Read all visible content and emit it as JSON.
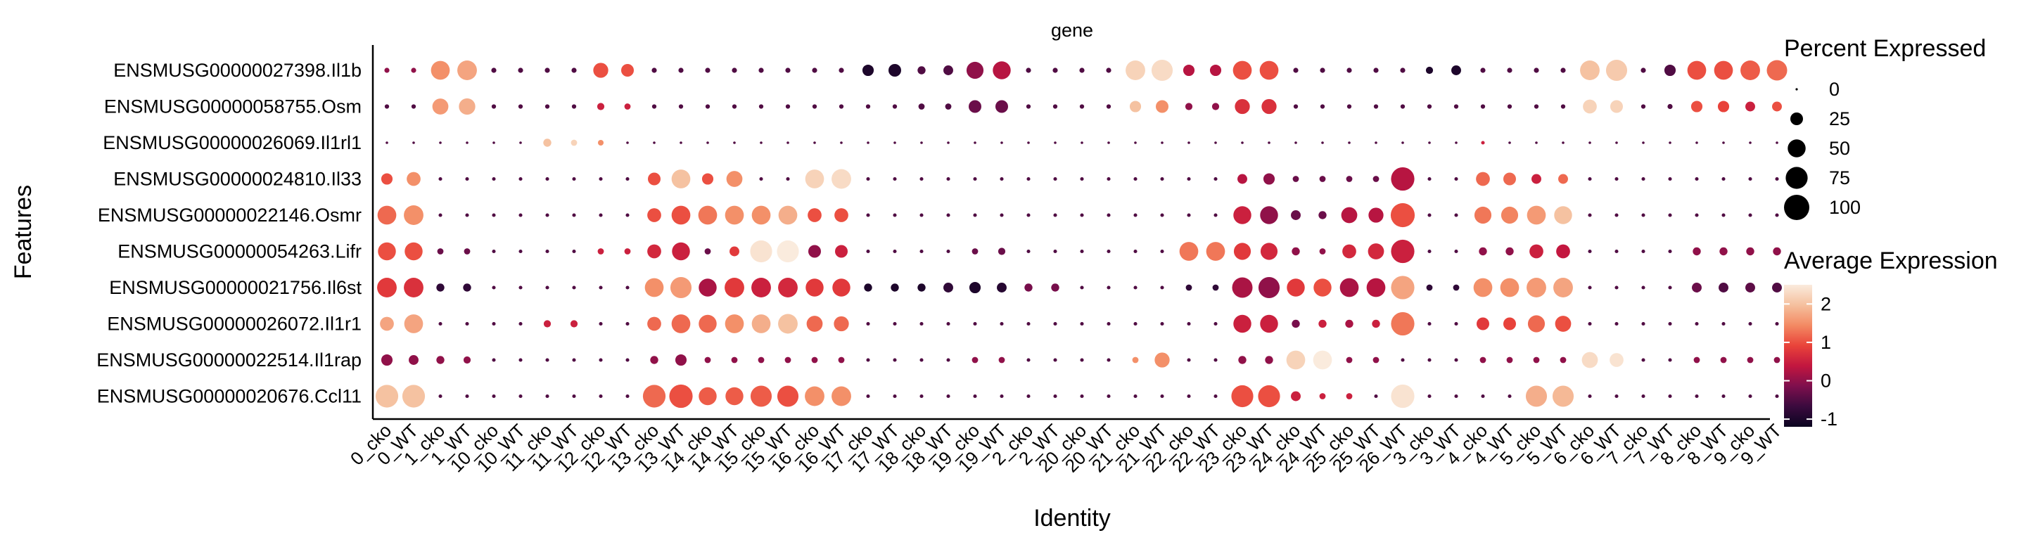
{
  "chart_data": {
    "type": "dotplot",
    "title": "gene",
    "xlabel": "Identity",
    "ylabel": "Features",
    "features": [
      "ENSMUSG00000027398.Il1b",
      "ENSMUSG00000058755.Osm",
      "ENSMUSG00000026069.Il1rl1",
      "ENSMUSG00000024810.Il33",
      "ENSMUSG00000022146.Osmr",
      "ENSMUSG00000054263.Lifr",
      "ENSMUSG00000021756.Il6st",
      "ENSMUSG00000026072.Il1r1",
      "ENSMUSG00000022514.Il1rap",
      "ENSMUSG00000020676.Ccl11"
    ],
    "identities": [
      "0_cko",
      "0_WT",
      "1_cko",
      "1_WT",
      "10_cko",
      "10_WT",
      "11_cko",
      "11_WT",
      "12_cko",
      "12_WT",
      "13_cko",
      "13_WT",
      "14_cko",
      "14_WT",
      "15_cko",
      "15_WT",
      "16_cko",
      "16_WT",
      "17_cko",
      "17_WT",
      "18_cko",
      "18_WT",
      "19_cko",
      "19_WT",
      "2_cko",
      "2_WT",
      "20_cko",
      "20_WT",
      "21_cko",
      "21_WT",
      "22_cko",
      "22_WT",
      "23_cko",
      "23_WT",
      "24_cko",
      "24_WT",
      "25_cko",
      "25_WT",
      "26_WT",
      "3_cko",
      "3_WT",
      "4_cko",
      "4_WT",
      "5_cko",
      "5_WT",
      "6_cko",
      "6_WT",
      "7_cko",
      "7_WT",
      "8_cko",
      "8_WT",
      "9_cko",
      "9_WT"
    ],
    "percent_expressed": [
      [
        4,
        4,
        55,
        60,
        4,
        4,
        4,
        4,
        35,
        25,
        4,
        4,
        4,
        4,
        4,
        4,
        4,
        4,
        20,
        25,
        10,
        15,
        45,
        50,
        4,
        4,
        4,
        4,
        60,
        70,
        20,
        20,
        55,
        55,
        4,
        4,
        4,
        4,
        4,
        8,
        15,
        4,
        4,
        4,
        4,
        60,
        70,
        4,
        20,
        55,
        55,
        60,
        65
      ],
      [
        3,
        3,
        40,
        42,
        3,
        3,
        3,
        3,
        8,
        6,
        3,
        3,
        3,
        3,
        3,
        3,
        3,
        3,
        3,
        3,
        6,
        6,
        25,
        25,
        3,
        3,
        3,
        3,
        20,
        25,
        8,
        8,
        35,
        35,
        3,
        3,
        3,
        3,
        3,
        3,
        3,
        3,
        3,
        3,
        3,
        30,
        25,
        3,
        4,
        20,
        20,
        15,
        15
      ],
      [
        1,
        1,
        1,
        1,
        1,
        1,
        10,
        6,
        5,
        1,
        1,
        1,
        1,
        1,
        1,
        1,
        1,
        1,
        1,
        1,
        1,
        1,
        1,
        1,
        1,
        1,
        1,
        1,
        1,
        1,
        1,
        1,
        1,
        1,
        1,
        1,
        1,
        1,
        1,
        1,
        1,
        2,
        1,
        1,
        1,
        1,
        1,
        1,
        1,
        1,
        1,
        1,
        1
      ],
      [
        20,
        30,
        2,
        2,
        2,
        2,
        2,
        2,
        2,
        2,
        25,
        55,
        20,
        40,
        2,
        2,
        55,
        60,
        2,
        2,
        2,
        2,
        2,
        2,
        2,
        2,
        2,
        2,
        2,
        2,
        2,
        2,
        15,
        20,
        6,
        6,
        6,
        6,
        85,
        2,
        2,
        30,
        25,
        15,
        15,
        2,
        2,
        2,
        2,
        2,
        2,
        2,
        2
      ],
      [
        55,
        60,
        2,
        2,
        2,
        2,
        2,
        2,
        2,
        2,
        30,
        55,
        55,
        55,
        55,
        55,
        30,
        30,
        2,
        2,
        2,
        2,
        2,
        2,
        2,
        2,
        2,
        2,
        2,
        2,
        2,
        2,
        50,
        50,
        15,
        10,
        40,
        35,
        90,
        2,
        2,
        45,
        45,
        55,
        50,
        2,
        2,
        2,
        2,
        2,
        2,
        2,
        2
      ],
      [
        50,
        50,
        6,
        6,
        2,
        2,
        2,
        2,
        6,
        6,
        30,
        50,
        6,
        15,
        75,
        75,
        25,
        25,
        2,
        2,
        2,
        2,
        6,
        8,
        2,
        2,
        2,
        2,
        2,
        2,
        55,
        55,
        45,
        45,
        10,
        6,
        30,
        40,
        85,
        2,
        2,
        10,
        10,
        30,
        30,
        2,
        2,
        2,
        2,
        10,
        10,
        10,
        10
      ],
      [
        60,
        60,
        10,
        10,
        2,
        2,
        2,
        2,
        2,
        2,
        55,
        70,
        50,
        60,
        60,
        60,
        50,
        50,
        10,
        10,
        10,
        15,
        20,
        15,
        10,
        10,
        2,
        2,
        2,
        2,
        6,
        6,
        65,
        70,
        50,
        50,
        55,
        55,
        85,
        6,
        6,
        55,
        55,
        60,
        60,
        2,
        2,
        2,
        2,
        15,
        15,
        15,
        15
      ],
      [
        30,
        55,
        2,
        2,
        2,
        2,
        8,
        8,
        2,
        2,
        30,
        55,
        50,
        55,
        55,
        60,
        40,
        35,
        2,
        2,
        2,
        2,
        2,
        2,
        2,
        2,
        2,
        2,
        2,
        2,
        2,
        2,
        50,
        50,
        10,
        10,
        10,
        10,
        85,
        2,
        2,
        25,
        25,
        45,
        40,
        2,
        2,
        2,
        2,
        2,
        2,
        2,
        2
      ],
      [
        20,
        15,
        10,
        8,
        2,
        2,
        2,
        2,
        2,
        2,
        10,
        20,
        6,
        6,
        6,
        6,
        6,
        6,
        2,
        2,
        2,
        2,
        6,
        6,
        2,
        2,
        2,
        2,
        6,
        35,
        2,
        2,
        10,
        10,
        55,
        55,
        6,
        6,
        2,
        2,
        2,
        6,
        6,
        6,
        6,
        40,
        30,
        2,
        2,
        6,
        6,
        6,
        6
      ],
      [
        80,
        80,
        2,
        2,
        2,
        2,
        2,
        2,
        2,
        2,
        80,
        85,
        50,
        50,
        70,
        70,
        60,
        60,
        2,
        2,
        2,
        2,
        2,
        2,
        2,
        2,
        2,
        2,
        2,
        2,
        2,
        2,
        75,
        75,
        15,
        6,
        6,
        2,
        85,
        2,
        2,
        2,
        2,
        70,
        70,
        2,
        2,
        2,
        2,
        2,
        2,
        2,
        2
      ]
    ],
    "avg_expression": [
      [
        0,
        0,
        1.5,
        1.7,
        -0.5,
        -0.5,
        -0.5,
        -0.5,
        1.0,
        1.0,
        -0.5,
        -0.5,
        -0.5,
        -0.5,
        -0.5,
        -0.5,
        -0.5,
        -0.5,
        -1.0,
        -1.0,
        -0.5,
        -0.5,
        0.0,
        0.3,
        -0.5,
        -0.5,
        -0.5,
        -0.5,
        2.2,
        2.3,
        0.3,
        0.3,
        1.0,
        1.0,
        -0.5,
        -0.5,
        -0.5,
        -0.5,
        -0.5,
        -1.0,
        -1.0,
        -0.5,
        -0.5,
        -0.5,
        -0.5,
        2.0,
        2.1,
        -0.5,
        -0.5,
        1.0,
        1.0,
        1.1,
        1.2
      ],
      [
        -0.5,
        -0.5,
        1.6,
        1.8,
        -0.5,
        -0.5,
        -0.5,
        -0.5,
        0.5,
        0.5,
        -0.5,
        -0.5,
        -0.5,
        -0.5,
        -0.5,
        -0.5,
        -0.5,
        -0.5,
        -0.5,
        -0.5,
        -0.5,
        -0.5,
        -0.3,
        -0.3,
        -0.5,
        -0.5,
        -0.5,
        -0.5,
        2.0,
        1.5,
        0.0,
        0.0,
        0.7,
        0.7,
        -0.5,
        -0.5,
        -0.5,
        -0.5,
        -0.5,
        -0.5,
        -0.5,
        -0.5,
        -0.5,
        -0.5,
        -0.5,
        2.2,
        2.2,
        -0.5,
        -0.5,
        1.0,
        0.9,
        0.5,
        1.0
      ],
      [
        -0.5,
        -0.5,
        -0.5,
        -0.5,
        -0.5,
        -0.5,
        2.0,
        2.2,
        1.5,
        -0.5,
        -0.5,
        -0.5,
        -0.5,
        -0.5,
        -0.5,
        -0.5,
        -0.5,
        -0.5,
        -0.5,
        -0.5,
        -0.5,
        -0.5,
        -0.5,
        -0.5,
        -0.5,
        -0.5,
        -0.5,
        -0.5,
        -0.5,
        -0.5,
        -0.5,
        -0.5,
        -0.5,
        -0.5,
        -0.5,
        -0.5,
        -0.5,
        -0.5,
        -0.5,
        -0.5,
        -0.5,
        0.5,
        -0.5,
        -0.5,
        -0.5,
        -0.5,
        -0.5,
        -0.5,
        -0.5,
        -0.5,
        -0.5,
        -0.5,
        -0.5
      ],
      [
        1.0,
        1.5,
        -0.5,
        -0.5,
        -0.5,
        -0.5,
        -0.5,
        -0.5,
        -0.5,
        -0.5,
        1.0,
        2.0,
        1.0,
        1.5,
        -0.5,
        -0.5,
        2.2,
        2.3,
        -0.5,
        -0.5,
        -0.5,
        -0.5,
        -0.5,
        -0.5,
        -0.5,
        -0.5,
        -0.5,
        -0.5,
        -0.5,
        -0.5,
        -0.5,
        -0.5,
        0.3,
        0.0,
        -0.3,
        -0.3,
        -0.3,
        -0.3,
        0.3,
        -0.5,
        -0.5,
        1.2,
        1.2,
        0.5,
        1.2,
        -0.5,
        -0.5,
        -0.5,
        -0.5,
        -0.5,
        -0.5,
        -0.5,
        -0.5
      ],
      [
        1.2,
        1.5,
        -0.5,
        -0.5,
        -0.5,
        -0.5,
        -0.5,
        -0.5,
        -0.5,
        -0.5,
        1.0,
        1.0,
        1.3,
        1.5,
        1.5,
        1.8,
        1.0,
        1.0,
        -0.5,
        -0.5,
        -0.5,
        -0.5,
        -0.5,
        -0.5,
        -0.5,
        -0.5,
        -0.5,
        -0.5,
        -0.5,
        -0.5,
        -0.5,
        -0.5,
        0.5,
        0.0,
        -0.3,
        -0.3,
        0.3,
        0.3,
        1.0,
        -0.5,
        -0.5,
        1.3,
        1.4,
        1.6,
        2.0,
        -0.5,
        -0.5,
        -0.5,
        -0.5,
        -0.5,
        -0.5,
        -0.5,
        -0.5
      ],
      [
        1.0,
        1.0,
        -0.3,
        -0.3,
        -0.5,
        -0.5,
        -0.5,
        -0.5,
        0.5,
        0.5,
        0.6,
        0.5,
        -0.3,
        0.8,
        2.4,
        2.5,
        0.0,
        0.5,
        -0.5,
        -0.5,
        -0.5,
        -0.5,
        -0.3,
        -0.3,
        -0.5,
        -0.5,
        -0.5,
        -0.5,
        -0.5,
        -0.5,
        1.3,
        1.3,
        0.8,
        0.6,
        0.0,
        0.0,
        0.6,
        0.6,
        0.5,
        -0.5,
        -0.5,
        0.0,
        0.0,
        0.5,
        0.4,
        -0.5,
        -0.5,
        -0.5,
        -0.5,
        0.0,
        0.0,
        0.0,
        0.0
      ],
      [
        0.8,
        0.7,
        -0.8,
        -0.8,
        -0.5,
        -0.5,
        -0.5,
        -0.5,
        -0.5,
        -0.5,
        1.5,
        1.6,
        0.2,
        0.8,
        0.5,
        0.6,
        0.8,
        0.8,
        -1.0,
        -1.0,
        -1.0,
        -0.8,
        -1.0,
        -0.9,
        -0.2,
        -0.2,
        -0.5,
        -0.5,
        -0.5,
        -0.5,
        -0.8,
        -0.8,
        0.2,
        0.0,
        0.8,
        1.0,
        0.2,
        0.3,
        1.7,
        -0.8,
        -0.8,
        1.5,
        1.5,
        1.6,
        1.7,
        -0.5,
        -0.5,
        -0.5,
        -0.5,
        -0.3,
        -0.5,
        -0.4,
        -0.5
      ],
      [
        1.7,
        1.7,
        -0.5,
        -0.5,
        -0.5,
        -0.5,
        0.5,
        0.5,
        -0.5,
        -0.5,
        1.2,
        1.2,
        1.2,
        1.5,
        1.8,
        2.0,
        1.2,
        1.2,
        -0.5,
        -0.5,
        -0.5,
        -0.5,
        -0.5,
        -0.5,
        -0.5,
        -0.5,
        -0.5,
        -0.5,
        -0.5,
        -0.5,
        -0.5,
        -0.5,
        0.5,
        0.5,
        -0.2,
        0.5,
        0.2,
        0.5,
        1.3,
        -0.5,
        -0.5,
        0.8,
        0.9,
        1.2,
        1.0,
        -0.5,
        -0.5,
        -0.5,
        -0.5,
        -0.5,
        -0.5,
        -0.5,
        -0.5
      ],
      [
        0.0,
        0.0,
        0.0,
        0.0,
        -0.5,
        -0.5,
        -0.5,
        -0.5,
        -0.5,
        -0.5,
        0.0,
        0.0,
        0.0,
        0.0,
        0.0,
        0.0,
        0.0,
        0.0,
        -0.5,
        -0.5,
        -0.5,
        -0.5,
        0.0,
        0.0,
        -0.5,
        -0.5,
        -0.5,
        -0.5,
        1.5,
        1.5,
        -0.5,
        -0.5,
        0.0,
        0.0,
        2.2,
        2.5,
        0.0,
        0.0,
        -0.5,
        -0.5,
        -0.5,
        0.0,
        0.0,
        0.0,
        0.0,
        2.3,
        2.4,
        -0.5,
        -0.5,
        0.0,
        0.0,
        0.0,
        0.0
      ],
      [
        2.0,
        2.0,
        -0.5,
        -0.5,
        -0.5,
        -0.5,
        -0.5,
        -0.5,
        -0.5,
        -0.5,
        1.2,
        1.0,
        1.1,
        1.1,
        1.1,
        1.0,
        1.5,
        1.5,
        -0.5,
        -0.5,
        -0.5,
        -0.5,
        -0.5,
        -0.5,
        -0.5,
        -0.5,
        -0.5,
        -0.5,
        -0.5,
        -0.5,
        -0.5,
        -0.5,
        1.0,
        1.0,
        0.5,
        0.5,
        0.5,
        -0.5,
        2.4,
        -0.5,
        -0.5,
        -0.5,
        -0.5,
        1.8,
        1.9,
        -0.5,
        -0.5,
        -0.5,
        -0.5,
        -0.5,
        -0.5,
        -0.5,
        -0.5
      ]
    ],
    "legend": {
      "size_title": "Percent Expressed",
      "size_breaks": [
        0,
        25,
        50,
        75,
        100
      ],
      "color_title": "Average Expression",
      "color_breaks": [
        2,
        1,
        0,
        -1
      ],
      "color_range": [
        -1.2,
        2.5
      ],
      "color_stops": [
        "#0b0420",
        "#3a0a3e",
        "#7e0f4d",
        "#c2163f",
        "#e9433a",
        "#f38a63",
        "#f5c09e",
        "#faebdd"
      ],
      "placement": "right"
    }
  }
}
